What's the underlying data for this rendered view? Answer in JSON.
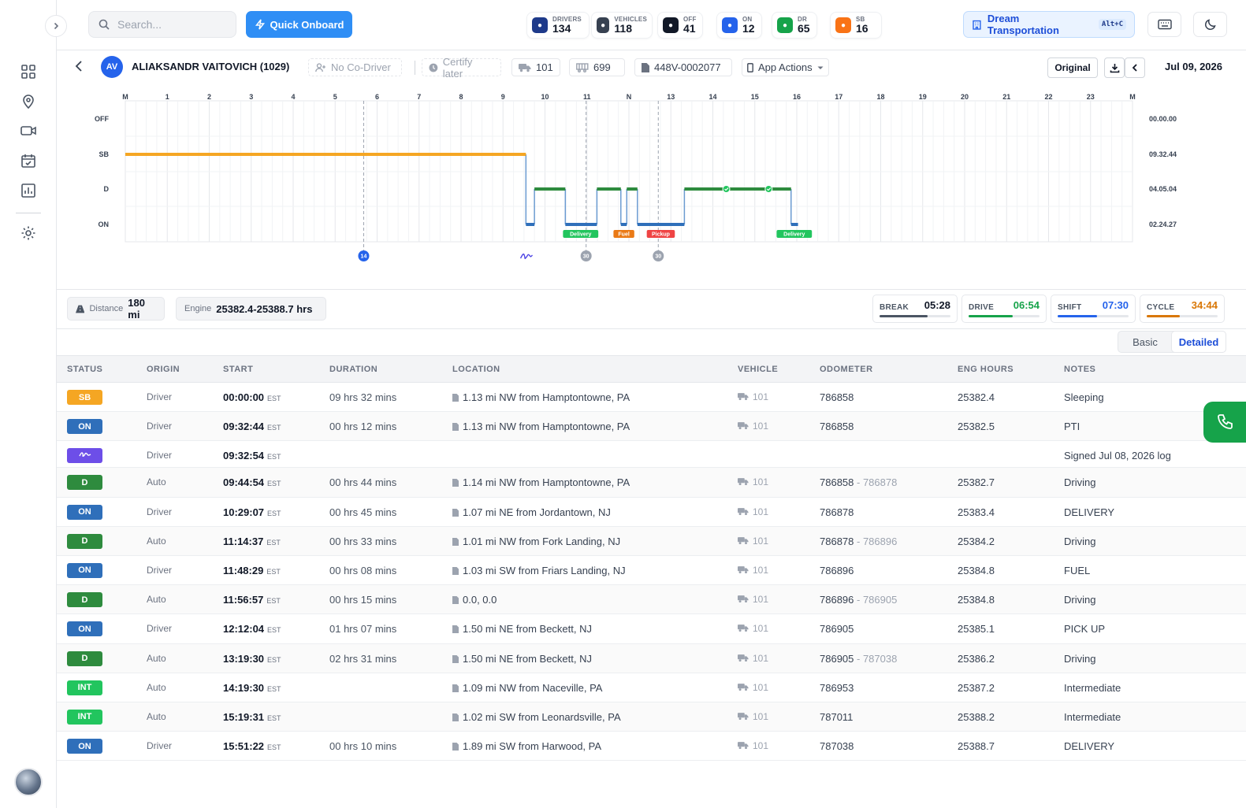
{
  "search": {
    "placeholder": "Search..."
  },
  "quick_onboard": "Quick Onboard",
  "stats": [
    {
      "label": "DRIVERS",
      "value": "134",
      "color": "#1e3a8a",
      "icon": "user-icon"
    },
    {
      "label": "VEHICLES",
      "value": "118",
      "color": "#374151",
      "icon": "truck-icon"
    },
    {
      "label": "OFF",
      "value": "41",
      "color": "#111827",
      "icon": "power-icon"
    },
    {
      "label": "ON",
      "value": "12",
      "color": "#2563eb",
      "icon": "truck-icon"
    },
    {
      "label": "DR",
      "value": "65",
      "color": "#16a34a",
      "icon": "steering-icon"
    },
    {
      "label": "SB",
      "value": "16",
      "color": "#f97316",
      "icon": "sleep-icon"
    }
  ],
  "company": {
    "name": "Dream Transportation",
    "shortcut": "Alt+C"
  },
  "driver": {
    "initials": "AV",
    "name": "ALIAKSANDR VAITOVICH (1029)",
    "co_driver": "No Co-Driver",
    "certify": "Certify later",
    "vehicle": "101",
    "trailer": "699",
    "document": "448V-0002077",
    "app_actions": "App Actions",
    "original": "Original",
    "date": "Jul 09, 2026"
  },
  "graph": {
    "hour_labels": [
      "M",
      "1",
      "2",
      "3",
      "4",
      "5",
      "6",
      "7",
      "8",
      "9",
      "10",
      "11",
      "N",
      "13",
      "14",
      "15",
      "16",
      "17",
      "18",
      "19",
      "20",
      "21",
      "22",
      "23",
      "M"
    ],
    "statuses": [
      "OFF",
      "SB",
      "D",
      "ON"
    ],
    "totals": [
      "00.00.00",
      "09.32.44",
      "04.05.04",
      "02.24.27"
    ],
    "segments": [
      {
        "status": "SB",
        "start": 0.0,
        "end": 9.546
      },
      {
        "status": "ON",
        "start": 9.546,
        "end": 9.749
      },
      {
        "status": "D",
        "start": 9.749,
        "end": 10.485
      },
      {
        "status": "ON",
        "start": 10.485,
        "end": 11.237
      },
      {
        "status": "D",
        "start": 11.237,
        "end": 11.808
      },
      {
        "status": "ON",
        "start": 11.808,
        "end": 11.949
      },
      {
        "status": "D",
        "start": 11.949,
        "end": 12.203
      },
      {
        "status": "ON",
        "start": 12.203,
        "end": 13.322
      },
      {
        "status": "D",
        "start": 13.322,
        "end": 15.864
      },
      {
        "status": "ON",
        "start": 15.864,
        "end": 16.03
      }
    ],
    "tags": [
      {
        "text": "Delivery",
        "hour": 10.85,
        "color": "#22c55e"
      },
      {
        "text": "Fuel",
        "hour": 11.88,
        "color": "#ea7a16"
      },
      {
        "text": "Pickup",
        "hour": 12.76,
        "color": "#ef4444"
      },
      {
        "text": "Delivery",
        "hour": 15.94,
        "color": "#22c55e"
      }
    ],
    "markers": [
      {
        "text": "14",
        "hour": 5.68,
        "color": "#2563eb"
      },
      {
        "text": "30",
        "hour": 10.98,
        "color": "#9ca3af"
      },
      {
        "text": "30",
        "hour": 12.7,
        "color": "#9ca3af"
      }
    ],
    "intermediate_hours": [
      14.32,
      15.33
    ],
    "signature_hour": 9.55
  },
  "summary": {
    "distance_label": "Distance",
    "distance": "180 mi",
    "engine_label": "Engine",
    "engine": "25382.4-25388.7 hrs",
    "clocks": [
      {
        "label": "BREAK",
        "value": "05:28",
        "color": "#111827",
        "bar": "#4b5563",
        "pct": 0.68
      },
      {
        "label": "DRIVE",
        "value": "06:54",
        "color": "#16a34a",
        "bar": "#16a34a",
        "pct": 0.62
      },
      {
        "label": "SHIFT",
        "value": "07:30",
        "color": "#2563eb",
        "bar": "#2563eb",
        "pct": 0.55
      },
      {
        "label": "CYCLE",
        "value": "34:44",
        "color": "#d97706",
        "bar": "#d97706",
        "pct": 0.47
      }
    ]
  },
  "view_toggle": {
    "basic": "Basic",
    "detailed": "Detailed"
  },
  "table": {
    "headers": [
      "STATUS",
      "ORIGIN",
      "START",
      "DURATION",
      "LOCATION",
      "VEHICLE",
      "ODOMETER",
      "ENG HOURS",
      "NOTES"
    ],
    "rows": [
      {
        "status": "SB",
        "color": "#f5a623",
        "origin": "Driver",
        "start": "00:00:00",
        "tz": "EST",
        "duration": "09 hrs 32 mins",
        "location": "1.13 mi NW from Hamptontowne, PA",
        "vehicle": "101",
        "odo": "786858",
        "odo2": "",
        "eng": "25382.4",
        "notes": "Sleeping"
      },
      {
        "status": "ON",
        "color": "#2f6fba",
        "origin": "Driver",
        "start": "09:32:44",
        "tz": "EST",
        "duration": "00 hrs 12 mins",
        "location": "1.13 mi NW from Hamptontowne, PA",
        "vehicle": "101",
        "odo": "786858",
        "odo2": "",
        "eng": "25382.5",
        "notes": "PTI"
      },
      {
        "status": "",
        "color": "#6d4ee8",
        "origin": "Driver",
        "start": "09:32:54",
        "tz": "EST",
        "duration": "",
        "location": "",
        "vehicle": "",
        "odo": "",
        "odo2": "",
        "eng": "",
        "notes": "Signed Jul 08, 2026 log"
      },
      {
        "status": "D",
        "color": "#2e8b3e",
        "origin": "Auto",
        "start": "09:44:54",
        "tz": "EST",
        "duration": "00 hrs 44 mins",
        "location": "1.14 mi NW from Hamptontowne, PA",
        "vehicle": "101",
        "odo": "786858",
        "odo2": "786878",
        "eng": "25382.7",
        "notes": "Driving"
      },
      {
        "status": "ON",
        "color": "#2f6fba",
        "origin": "Driver",
        "start": "10:29:07",
        "tz": "EST",
        "duration": "00 hrs 45 mins",
        "location": "1.07 mi NE from Jordantown, NJ",
        "vehicle": "101",
        "odo": "786878",
        "odo2": "",
        "eng": "25383.4",
        "notes": "DELIVERY"
      },
      {
        "status": "D",
        "color": "#2e8b3e",
        "origin": "Auto",
        "start": "11:14:37",
        "tz": "EST",
        "duration": "00 hrs 33 mins",
        "location": "1.01 mi NW from Fork Landing, NJ",
        "vehicle": "101",
        "odo": "786878",
        "odo2": "786896",
        "eng": "25384.2",
        "notes": "Driving"
      },
      {
        "status": "ON",
        "color": "#2f6fba",
        "origin": "Driver",
        "start": "11:48:29",
        "tz": "EST",
        "duration": "00 hrs 08 mins",
        "location": "1.03 mi SW from Friars Landing, NJ",
        "vehicle": "101",
        "odo": "786896",
        "odo2": "",
        "eng": "25384.8",
        "notes": "FUEL"
      },
      {
        "status": "D",
        "color": "#2e8b3e",
        "origin": "Auto",
        "start": "11:56:57",
        "tz": "EST",
        "duration": "00 hrs 15 mins",
        "location": "0.0, 0.0",
        "vehicle": "101",
        "odo": "786896",
        "odo2": "786905",
        "eng": "25384.8",
        "notes": "Driving"
      },
      {
        "status": "ON",
        "color": "#2f6fba",
        "origin": "Driver",
        "start": "12:12:04",
        "tz": "EST",
        "duration": "01 hrs 07 mins",
        "location": "1.50 mi NE from Beckett, NJ",
        "vehicle": "101",
        "odo": "786905",
        "odo2": "",
        "eng": "25385.1",
        "notes": "PICK UP"
      },
      {
        "status": "D",
        "color": "#2e8b3e",
        "origin": "Auto",
        "start": "13:19:30",
        "tz": "EST",
        "duration": "02 hrs 31 mins",
        "location": "1.50 mi NE from Beckett, NJ",
        "vehicle": "101",
        "odo": "786905",
        "odo2": "787038",
        "eng": "25386.2",
        "notes": "Driving"
      },
      {
        "status": "INT",
        "color": "#22c55e",
        "origin": "Auto",
        "start": "14:19:30",
        "tz": "EST",
        "duration": "",
        "location": "1.09 mi NW from Naceville, PA",
        "vehicle": "101",
        "odo": "786953",
        "odo2": "",
        "eng": "25387.2",
        "notes": "Intermediate"
      },
      {
        "status": "INT",
        "color": "#22c55e",
        "origin": "Auto",
        "start": "15:19:31",
        "tz": "EST",
        "duration": "",
        "location": "1.02 mi SW from Leonardsville, PA",
        "vehicle": "101",
        "odo": "787011",
        "odo2": "",
        "eng": "25388.2",
        "notes": "Intermediate"
      },
      {
        "status": "ON",
        "color": "#2f6fba",
        "origin": "Driver",
        "start": "15:51:22",
        "tz": "EST",
        "duration": "00 hrs 10 mins",
        "location": "1.89 mi SW from Harwood, PA",
        "vehicle": "101",
        "odo": "787038",
        "odo2": "",
        "eng": "25388.7",
        "notes": "DELIVERY"
      }
    ]
  }
}
